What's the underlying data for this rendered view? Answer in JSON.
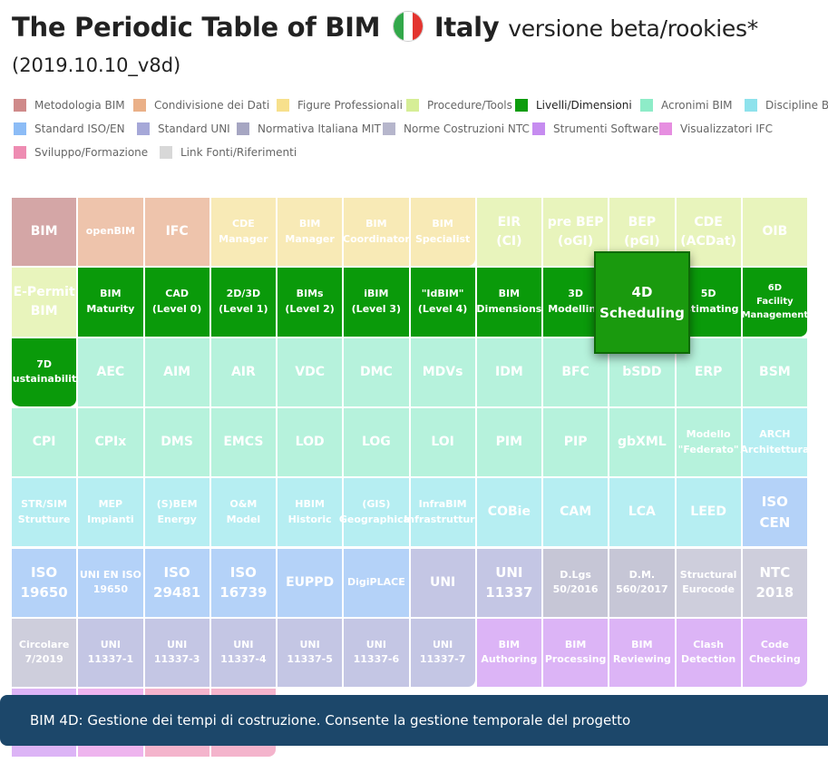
{
  "header": {
    "title": "The Periodic Table of BIM",
    "country": "Italy",
    "subtitle": "versione beta/rookies*",
    "version": "(2019.10.10_v8d)",
    "flag_colors": [
      "#32a84a",
      "#ffffff",
      "#e3342f"
    ]
  },
  "legend": [
    {
      "label": "Metodologia BIM",
      "color": "#cf8a8a"
    },
    {
      "label": "Condivisione dei Dati",
      "color": "#eab088"
    },
    {
      "label": "Figure Professionali",
      "color": "#f7e08c"
    },
    {
      "label": "Procedure/Tools",
      "color": "#d6ee96"
    },
    {
      "label": "Livelli/Dimensioni",
      "color": "#0c9c0c"
    },
    {
      "label": "Acronimi BIM",
      "color": "#8eecc8"
    },
    {
      "label": "Discipline BIM",
      "color": "#8ee2ec"
    },
    {
      "label": "Standard ISO/EN",
      "color": "#8cbcf6"
    },
    {
      "label": "Standard UNI",
      "color": "#a6a8d8"
    },
    {
      "label": "Normativa Italiana MIT",
      "color": "#a6a6c2"
    },
    {
      "label": "Norme Costruzioni NTC",
      "color": "#b6b6cc"
    },
    {
      "label": "Strumenti Software",
      "color": "#c68cf0"
    },
    {
      "label": "Visualizzatori IFC",
      "color": "#e68ee0"
    },
    {
      "label": "Sviluppo/Formazione",
      "color": "#ee8cb2"
    },
    {
      "label": "Link Fonti/Riferimenti",
      "color": "#d8d8d8"
    }
  ],
  "table": {
    "rows": [
      [
        {
          "t": "BIM",
          "c": "#d4a6a6",
          "s": "md"
        },
        {
          "t": "openBIM",
          "c": "#eec4ac",
          "s": "sm"
        },
        {
          "t": "IFC",
          "c": "#eec4ac",
          "s": "md"
        },
        {
          "t": "CDE\nManager",
          "c": "#f8eab6",
          "s": "sm"
        },
        {
          "t": "BIM\nManager",
          "c": "#f8eab6",
          "s": "sm"
        },
        {
          "t": "BIM\nCoordinator",
          "c": "#f8eab6",
          "s": "sm"
        },
        {
          "t": "BIM\nSpecialist",
          "c": "#f8eab6",
          "s": "sm"
        },
        {
          "t": "EIR\n(CI)",
          "c": "#e8f4bc",
          "s": "md"
        },
        {
          "t": "pre BEP\n(oGI)",
          "c": "#e8f4bc",
          "s": "md"
        },
        {
          "t": "BEP\n(pGI)",
          "c": "#e8f4bc",
          "s": "md"
        },
        {
          "t": "CDE\n(ACDat)",
          "c": "#e8f4bc",
          "s": "md"
        },
        {
          "t": "OIB",
          "c": "#e8f4bc",
          "s": "md"
        }
      ],
      [
        {
          "t": "E-Permit\nBIM",
          "c": "#e8f4bc",
          "s": "md"
        },
        {
          "t": "BIM\nMaturity",
          "c": "#0a9a0a",
          "s": "sm"
        },
        {
          "t": "CAD\n(Level 0)",
          "c": "#0a9a0a",
          "s": "sm"
        },
        {
          "t": "2D/3D\n(Level 1)",
          "c": "#0a9a0a",
          "s": "sm"
        },
        {
          "t": "BIMs\n(Level 2)",
          "c": "#0a9a0a",
          "s": "sm"
        },
        {
          "t": "iBIM\n(Level 3)",
          "c": "#0a9a0a",
          "s": "sm"
        },
        {
          "t": "\"IdBIM\"\n(Level 4)",
          "c": "#0a9a0a",
          "s": "sm"
        },
        {
          "t": "BIM\nDimensions",
          "c": "#0a9a0a",
          "s": "sm"
        },
        {
          "t": "3D\nModelling",
          "c": "#0a9a0a",
          "s": "sm"
        },
        {
          "t": "",
          "c": "#0a9a0a",
          "s": "sm"
        },
        {
          "t": "5D\nEstimating",
          "c": "#0a9a0a",
          "s": "sm"
        },
        {
          "t": "6D\nFacility\nManagement",
          "c": "#0a9a0a",
          "s": "sm"
        }
      ],
      [
        {
          "t": "7D\nSustainability",
          "c": "#0a9a0a",
          "s": "sm"
        },
        {
          "t": "AEC",
          "c": "#b6f2dc",
          "s": "md"
        },
        {
          "t": "AIM",
          "c": "#b6f2dc",
          "s": "md"
        },
        {
          "t": "AIR",
          "c": "#b6f2dc",
          "s": "md"
        },
        {
          "t": "VDC",
          "c": "#b6f2dc",
          "s": "md"
        },
        {
          "t": "DMC",
          "c": "#b6f2dc",
          "s": "md"
        },
        {
          "t": "MDVs",
          "c": "#b6f2dc",
          "s": "md"
        },
        {
          "t": "IDM",
          "c": "#b6f2dc",
          "s": "md"
        },
        {
          "t": "BFC",
          "c": "#b6f2dc",
          "s": "md"
        },
        {
          "t": "bSDD",
          "c": "#b6f2dc",
          "s": "md"
        },
        {
          "t": "ERP",
          "c": "#b6f2dc",
          "s": "md"
        },
        {
          "t": "BSM",
          "c": "#b6f2dc",
          "s": "md"
        }
      ],
      [
        {
          "t": "CPI",
          "c": "#b6f2dc",
          "s": "md"
        },
        {
          "t": "CPIx",
          "c": "#b6f2dc",
          "s": "md"
        },
        {
          "t": "DMS",
          "c": "#b6f2dc",
          "s": "md"
        },
        {
          "t": "EMCS",
          "c": "#b6f2dc",
          "s": "md"
        },
        {
          "t": "LOD",
          "c": "#b6f2dc",
          "s": "md"
        },
        {
          "t": "LOG",
          "c": "#b6f2dc",
          "s": "md"
        },
        {
          "t": "LOI",
          "c": "#b6f2dc",
          "s": "md"
        },
        {
          "t": "PIM",
          "c": "#b6f2dc",
          "s": "md"
        },
        {
          "t": "PIP",
          "c": "#b6f2dc",
          "s": "md"
        },
        {
          "t": "gbXML",
          "c": "#b6f2dc",
          "s": "md"
        },
        {
          "t": "Modello\n\"Federato\"",
          "c": "#b6f2dc",
          "s": "sm"
        },
        {
          "t": "ARCH\nArchitettura",
          "c": "#b6eef2",
          "s": "sm"
        }
      ],
      [
        {
          "t": "STR/SIM\nStrutture",
          "c": "#b6eef2",
          "s": "sm"
        },
        {
          "t": "MEP\nImpianti",
          "c": "#b6eef2",
          "s": "sm"
        },
        {
          "t": "(S)BEM\nEnergy",
          "c": "#b6eef2",
          "s": "sm"
        },
        {
          "t": "O&M\nModel",
          "c": "#b6eef2",
          "s": "sm"
        },
        {
          "t": "HBIM\nHistoric",
          "c": "#b6eef2",
          "s": "sm"
        },
        {
          "t": "(GIS)\nGeographical",
          "c": "#b6eef2",
          "s": "sm"
        },
        {
          "t": "InfraBIM\nInfrastrutture",
          "c": "#b6eef2",
          "s": "sm"
        },
        {
          "t": "COBie",
          "c": "#b6eef2",
          "s": "md"
        },
        {
          "t": "CAM",
          "c": "#b6eef2",
          "s": "md"
        },
        {
          "t": "LCA",
          "c": "#b6eef2",
          "s": "md"
        },
        {
          "t": "LEED",
          "c": "#b6eef2",
          "s": "md"
        },
        {
          "t": "ISO\nCEN",
          "c": "#b4d2f8",
          "s": "lg"
        }
      ],
      [
        {
          "t": "ISO\n19650",
          "c": "#b4d2f8",
          "s": "lg"
        },
        {
          "t": "UNI EN ISO\n19650",
          "c": "#b4d2f8",
          "s": "sm"
        },
        {
          "t": "ISO\n29481",
          "c": "#b4d2f8",
          "s": "lg"
        },
        {
          "t": "ISO\n16739",
          "c": "#b4d2f8",
          "s": "lg"
        },
        {
          "t": "EUPPD",
          "c": "#b4d2f8",
          "s": "md"
        },
        {
          "t": "DigiPLACE",
          "c": "#b4d2f8",
          "s": "sm"
        },
        {
          "t": "UNI",
          "c": "#c4c6e4",
          "s": "md"
        },
        {
          "t": "UNI\n11337",
          "c": "#c4c6e4",
          "s": "lg"
        },
        {
          "t": "D.Lgs\n50/2016",
          "c": "#c6c6d6",
          "s": "sm"
        },
        {
          "t": "D.M.\n560/2017",
          "c": "#c6c6d6",
          "s": "sm"
        },
        {
          "t": "Structural\nEurocode",
          "c": "#cecedc",
          "s": "sm"
        },
        {
          "t": "NTC\n2018",
          "c": "#cecedc",
          "s": "lg"
        }
      ],
      [
        {
          "t": "Circolare\n7/2019",
          "c": "#cecedc",
          "s": "sm"
        },
        {
          "t": "UNI\n11337-1",
          "c": "#c4c6e4",
          "s": "sm"
        },
        {
          "t": "UNI\n11337-3",
          "c": "#c4c6e4",
          "s": "sm"
        },
        {
          "t": "UNI\n11337-4",
          "c": "#c4c6e4",
          "s": "sm"
        },
        {
          "t": "UNI\n11337-5",
          "c": "#c4c6e4",
          "s": "sm"
        },
        {
          "t": "UNI\n11337-6",
          "c": "#c4c6e4",
          "s": "sm"
        },
        {
          "t": "UNI\n11337-7",
          "c": "#c4c6e4",
          "s": "sm"
        },
        {
          "t": "BIM\nAuthoring",
          "c": "#dcb4f6",
          "s": "sm"
        },
        {
          "t": "BIM\nProcessing",
          "c": "#dcb4f6",
          "s": "sm"
        },
        {
          "t": "BIM\nReviewing",
          "c": "#dcb4f6",
          "s": "sm"
        },
        {
          "t": "Clash\nDetection",
          "c": "#dcb4f6",
          "s": "sm"
        },
        {
          "t": "Code\nChecking",
          "c": "#dcb4f6",
          "s": "sm"
        }
      ],
      [
        {
          "t": "",
          "c": "#dcb4f6",
          "s": "sm"
        },
        {
          "t": "",
          "c": "#eeb4ee",
          "s": "sm"
        },
        {
          "t": "",
          "c": "#f4b4cc",
          "s": "sm"
        },
        {
          "t": "",
          "c": "#f4b4cc",
          "s": "sm"
        }
      ]
    ]
  },
  "popup": {
    "label": "4D\nScheduling"
  },
  "tooltip": {
    "text": "BIM 4D: Gestione dei tempi di costruzione. Consente la gestione temporale del progetto"
  }
}
